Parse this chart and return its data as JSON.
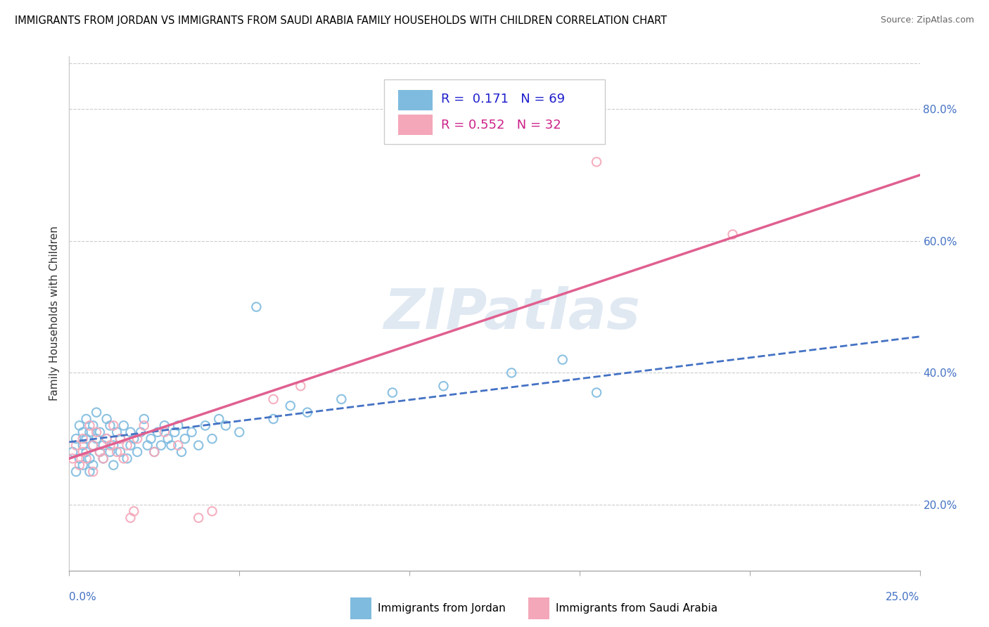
{
  "title": "IMMIGRANTS FROM JORDAN VS IMMIGRANTS FROM SAUDI ARABIA FAMILY HOUSEHOLDS WITH CHILDREN CORRELATION CHART",
  "source": "Source: ZipAtlas.com",
  "ylabel": "Family Households with Children",
  "jordan_color": "#7fbbdf",
  "saudi_color": "#f4a7b9",
  "jordan_trend_color": "#4472c4",
  "saudi_trend_color": "#e06090",
  "watermark": "ZIPatlas",
  "jordan_R": 0.171,
  "jordan_N": 69,
  "saudi_R": 0.552,
  "saudi_N": 32,
  "xlim": [
    0.0,
    0.25
  ],
  "ylim": [
    0.1,
    0.88
  ],
  "ytick_vals": [
    0.2,
    0.4,
    0.6,
    0.8
  ],
  "ytick_labels": [
    "20.0%",
    "40.0%",
    "60.0%",
    "80.0%"
  ],
  "legend_R1": "R =  0.171",
  "legend_N1": "N = 69",
  "legend_R2": "R = 0.552",
  "legend_N2": "N = 32",
  "jordan_x": [
    0.001,
    0.002,
    0.002,
    0.003,
    0.003,
    0.004,
    0.004,
    0.004,
    0.005,
    0.005,
    0.005,
    0.006,
    0.006,
    0.006,
    0.007,
    0.007,
    0.007,
    0.008,
    0.008,
    0.009,
    0.009,
    0.01,
    0.01,
    0.011,
    0.011,
    0.012,
    0.012,
    0.013,
    0.013,
    0.014,
    0.015,
    0.015,
    0.016,
    0.017,
    0.018,
    0.018,
    0.019,
    0.02,
    0.021,
    0.022,
    0.023,
    0.024,
    0.025,
    0.026,
    0.027,
    0.028,
    0.029,
    0.03,
    0.031,
    0.032,
    0.033,
    0.034,
    0.036,
    0.038,
    0.04,
    0.042,
    0.044,
    0.046,
    0.05,
    0.055,
    0.06,
    0.065,
    0.07,
    0.08,
    0.095,
    0.11,
    0.13,
    0.145,
    0.155
  ],
  "jordan_y": [
    0.28,
    0.3,
    0.25,
    0.32,
    0.27,
    0.29,
    0.31,
    0.26,
    0.3,
    0.28,
    0.33,
    0.25,
    0.31,
    0.27,
    0.29,
    0.32,
    0.26,
    0.3,
    0.34,
    0.28,
    0.31,
    0.29,
    0.27,
    0.33,
    0.3,
    0.28,
    0.32,
    0.26,
    0.29,
    0.31,
    0.28,
    0.3,
    0.32,
    0.27,
    0.31,
    0.29,
    0.3,
    0.28,
    0.31,
    0.33,
    0.29,
    0.3,
    0.28,
    0.31,
    0.29,
    0.32,
    0.3,
    0.29,
    0.31,
    0.32,
    0.28,
    0.3,
    0.31,
    0.29,
    0.32,
    0.3,
    0.33,
    0.32,
    0.31,
    0.5,
    0.33,
    0.35,
    0.34,
    0.36,
    0.37,
    0.38,
    0.4,
    0.42,
    0.37
  ],
  "saudi_x": [
    0.001,
    0.002,
    0.003,
    0.004,
    0.004,
    0.005,
    0.006,
    0.007,
    0.007,
    0.008,
    0.009,
    0.01,
    0.011,
    0.012,
    0.013,
    0.014,
    0.015,
    0.016,
    0.017,
    0.018,
    0.019,
    0.02,
    0.022,
    0.025,
    0.028,
    0.032,
    0.038,
    0.042,
    0.06,
    0.068,
    0.155,
    0.195
  ],
  "saudi_y": [
    0.27,
    0.29,
    0.26,
    0.3,
    0.28,
    0.27,
    0.32,
    0.25,
    0.29,
    0.31,
    0.28,
    0.27,
    0.3,
    0.29,
    0.32,
    0.28,
    0.3,
    0.27,
    0.29,
    0.18,
    0.19,
    0.3,
    0.32,
    0.28,
    0.31,
    0.29,
    0.18,
    0.19,
    0.36,
    0.38,
    0.72,
    0.61
  ],
  "jordan_trend_x": [
    0.0,
    0.25
  ],
  "jordan_trend_y": [
    0.295,
    0.455
  ],
  "saudi_trend_x": [
    0.0,
    0.25
  ],
  "saudi_trend_y": [
    0.27,
    0.7
  ]
}
